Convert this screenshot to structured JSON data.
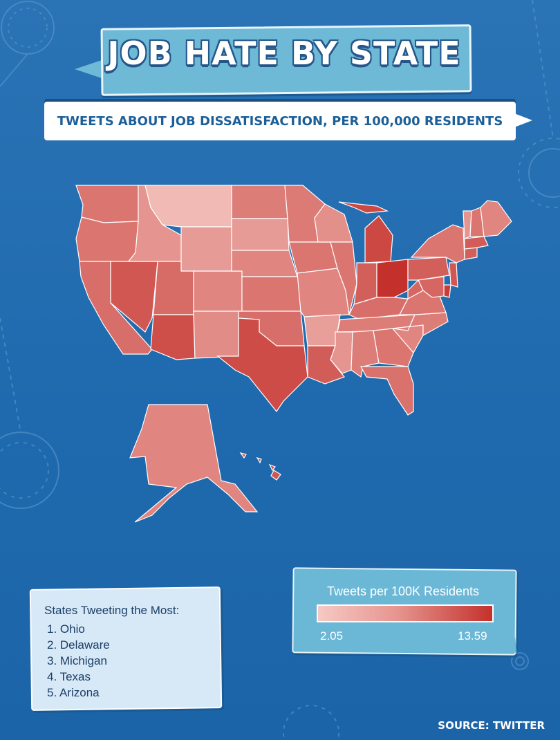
{
  "title": "JOB HATE BY STATE",
  "subtitle": "TWEETS ABOUT JOB DISSATISFACTION, PER 100,000 RESIDENTS",
  "colors": {
    "background": "#2a73b5",
    "scale_low": "#f6c9c4",
    "scale_high": "#c4312c",
    "title_box": "#6db9d6",
    "title_outline": "#24568a",
    "list_box": "#d7e8f7",
    "legend_box": "#6ab7d6"
  },
  "top_list": {
    "title": "States Tweeting the Most:",
    "items": [
      "1. Ohio",
      "2. Delaware",
      "3. Michigan",
      "4. Texas",
      "5. Arizona"
    ]
  },
  "legend": {
    "title": "Tweets per 100K Residents",
    "min_label": "2.05",
    "max_label": "13.59",
    "min": 2.05,
    "max": 13.59
  },
  "source": "SOURCE: TWITTER",
  "map_states": [
    {
      "id": "WA",
      "level": 0.55
    },
    {
      "id": "OR",
      "level": 0.55
    },
    {
      "id": "CA",
      "level": 0.6
    },
    {
      "id": "NV",
      "level": 0.75
    },
    {
      "id": "ID",
      "level": 0.35
    },
    {
      "id": "MT",
      "level": 0.1
    },
    {
      "id": "WY",
      "level": 0.3
    },
    {
      "id": "UT",
      "level": 0.62
    },
    {
      "id": "AZ",
      "level": 0.8
    },
    {
      "id": "CO",
      "level": 0.45
    },
    {
      "id": "NM",
      "level": 0.4
    },
    {
      "id": "ND",
      "level": 0.5
    },
    {
      "id": "SD",
      "level": 0.3
    },
    {
      "id": "NE",
      "level": 0.45
    },
    {
      "id": "KS",
      "level": 0.55
    },
    {
      "id": "OK",
      "level": 0.6
    },
    {
      "id": "TX",
      "level": 0.82
    },
    {
      "id": "MN",
      "level": 0.52
    },
    {
      "id": "IA",
      "level": 0.55
    },
    {
      "id": "MO",
      "level": 0.45
    },
    {
      "id": "AR",
      "level": 0.28
    },
    {
      "id": "LA",
      "level": 0.72
    },
    {
      "id": "WI",
      "level": 0.38
    },
    {
      "id": "IL",
      "level": 0.55
    },
    {
      "id": "MI",
      "level": 0.85
    },
    {
      "id": "IN",
      "level": 0.7
    },
    {
      "id": "OH",
      "level": 1.0
    },
    {
      "id": "KY",
      "level": 0.6
    },
    {
      "id": "TN",
      "level": 0.5
    },
    {
      "id": "MS",
      "level": 0.35
    },
    {
      "id": "AL",
      "level": 0.5
    },
    {
      "id": "GA",
      "level": 0.55
    },
    {
      "id": "FL",
      "level": 0.58
    },
    {
      "id": "SC",
      "level": 0.45
    },
    {
      "id": "NC",
      "level": 0.5
    },
    {
      "id": "VA",
      "level": 0.55
    },
    {
      "id": "WV",
      "level": 0.65
    },
    {
      "id": "PA",
      "level": 0.7
    },
    {
      "id": "NY",
      "level": 0.55
    },
    {
      "id": "NJ",
      "level": 0.75
    },
    {
      "id": "DE",
      "level": 0.92
    },
    {
      "id": "MD",
      "level": 0.65
    },
    {
      "id": "CT",
      "level": 0.7
    },
    {
      "id": "MA",
      "level": 0.72
    },
    {
      "id": "VT",
      "level": 0.35
    },
    {
      "id": "NH",
      "level": 0.55
    },
    {
      "id": "ME",
      "level": 0.45
    },
    {
      "id": "AK",
      "level": 0.45
    },
    {
      "id": "HI",
      "level": 0.75
    }
  ]
}
